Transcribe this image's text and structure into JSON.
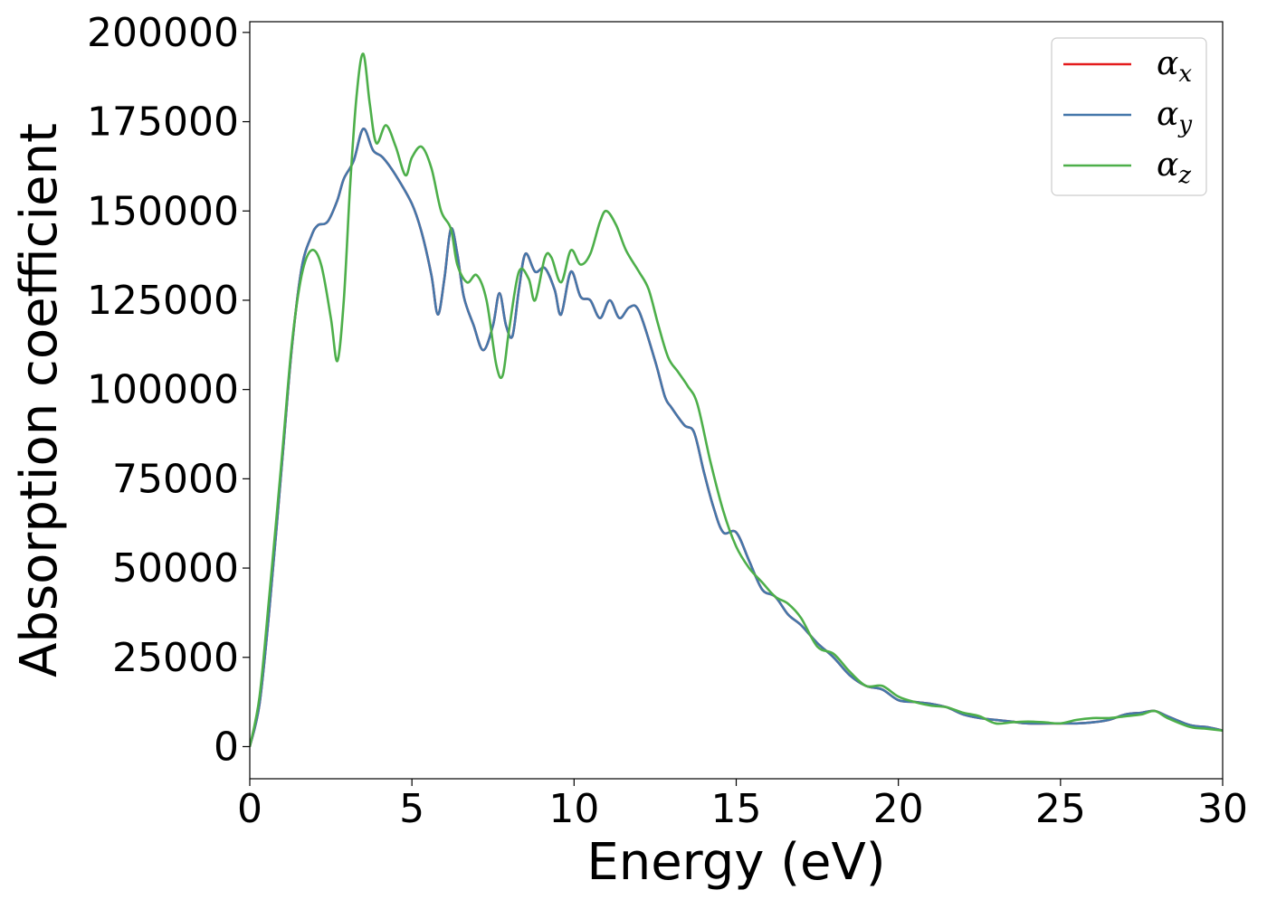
{
  "chart_data": {
    "type": "line",
    "title": "",
    "xlabel": "Energy (eV)",
    "ylabel": "Absorption coefficient",
    "xlim": [
      0,
      30
    ],
    "ylim": [
      -9000,
      203000
    ],
    "xticks": [
      0,
      5,
      10,
      15,
      20,
      25,
      30
    ],
    "xtick_labels": [
      "0",
      "5",
      "10",
      "15",
      "20",
      "25",
      "30"
    ],
    "yticks": [
      0,
      25000,
      50000,
      75000,
      100000,
      125000,
      150000,
      175000,
      200000
    ],
    "ytick_labels": [
      "0",
      "25000",
      "50000",
      "75000",
      "100000",
      "125000",
      "150000",
      "175000",
      "200000"
    ],
    "grid": false,
    "legend_position": "top-right",
    "series": [
      {
        "name": "α",
        "subscript": "x",
        "color": "#e41a1c",
        "points": [
          [
            0,
            0
          ],
          [
            0.3,
            12000
          ],
          [
            0.6,
            38000
          ],
          [
            1.0,
            80000
          ],
          [
            1.3,
            112000
          ],
          [
            1.6,
            134000
          ],
          [
            1.9,
            143000
          ],
          [
            2.1,
            146000
          ],
          [
            2.4,
            147000
          ],
          [
            2.7,
            153000
          ],
          [
            2.9,
            159000
          ],
          [
            3.2,
            164000
          ],
          [
            3.5,
            173000
          ],
          [
            3.8,
            167000
          ],
          [
            4.1,
            165000
          ],
          [
            4.5,
            160000
          ],
          [
            5.0,
            152000
          ],
          [
            5.3,
            144000
          ],
          [
            5.6,
            132000
          ],
          [
            5.8,
            121000
          ],
          [
            6.0,
            131000
          ],
          [
            6.2,
            145000
          ],
          [
            6.4,
            138000
          ],
          [
            6.6,
            126000
          ],
          [
            6.9,
            118000
          ],
          [
            7.2,
            111000
          ],
          [
            7.5,
            118000
          ],
          [
            7.7,
            127000
          ],
          [
            7.9,
            118000
          ],
          [
            8.1,
            115000
          ],
          [
            8.3,
            128000
          ],
          [
            8.5,
            138000
          ],
          [
            8.8,
            133000
          ],
          [
            9.1,
            134000
          ],
          [
            9.4,
            128000
          ],
          [
            9.6,
            121000
          ],
          [
            9.9,
            133000
          ],
          [
            10.2,
            126000
          ],
          [
            10.5,
            125000
          ],
          [
            10.8,
            120000
          ],
          [
            11.1,
            125000
          ],
          [
            11.4,
            120000
          ],
          [
            11.7,
            123000
          ],
          [
            12.0,
            122000
          ],
          [
            12.5,
            108000
          ],
          [
            12.8,
            98000
          ],
          [
            13.0,
            95000
          ],
          [
            13.4,
            90000
          ],
          [
            13.7,
            88000
          ],
          [
            14.0,
            77000
          ],
          [
            14.3,
            67000
          ],
          [
            14.6,
            60000
          ],
          [
            15.0,
            60000
          ],
          [
            15.4,
            52000
          ],
          [
            15.8,
            44000
          ],
          [
            16.2,
            42000
          ],
          [
            16.6,
            37000
          ],
          [
            17.0,
            34000
          ],
          [
            17.5,
            29000
          ],
          [
            18.0,
            25000
          ],
          [
            18.5,
            20000
          ],
          [
            19.0,
            17000
          ],
          [
            19.5,
            16000
          ],
          [
            20.0,
            13000
          ],
          [
            20.5,
            12500
          ],
          [
            21.0,
            12000
          ],
          [
            21.5,
            11000
          ],
          [
            22.0,
            9000
          ],
          [
            22.5,
            8000
          ],
          [
            23.0,
            7500
          ],
          [
            23.5,
            7000
          ],
          [
            24.0,
            6500
          ],
          [
            25.0,
            6500
          ],
          [
            25.5,
            6500
          ],
          [
            26.0,
            6800
          ],
          [
            26.5,
            7500
          ],
          [
            27.0,
            9000
          ],
          [
            27.5,
            9500
          ],
          [
            27.9,
            10000
          ],
          [
            28.3,
            8500
          ],
          [
            29.0,
            6000
          ],
          [
            29.5,
            5500
          ],
          [
            30.0,
            4500
          ]
        ]
      },
      {
        "name": "α",
        "subscript": "y",
        "color": "#4477aa",
        "points": [
          [
            0,
            0
          ],
          [
            0.3,
            12000
          ],
          [
            0.6,
            38000
          ],
          [
            1.0,
            80000
          ],
          [
            1.3,
            112000
          ],
          [
            1.6,
            134000
          ],
          [
            1.9,
            143000
          ],
          [
            2.1,
            146000
          ],
          [
            2.4,
            147000
          ],
          [
            2.7,
            153000
          ],
          [
            2.9,
            159000
          ],
          [
            3.2,
            164000
          ],
          [
            3.5,
            173000
          ],
          [
            3.8,
            167000
          ],
          [
            4.1,
            165000
          ],
          [
            4.5,
            160000
          ],
          [
            5.0,
            152000
          ],
          [
            5.3,
            144000
          ],
          [
            5.6,
            132000
          ],
          [
            5.8,
            121000
          ],
          [
            6.0,
            131000
          ],
          [
            6.2,
            145000
          ],
          [
            6.4,
            138000
          ],
          [
            6.6,
            126000
          ],
          [
            6.9,
            118000
          ],
          [
            7.2,
            111000
          ],
          [
            7.5,
            118000
          ],
          [
            7.7,
            127000
          ],
          [
            7.9,
            118000
          ],
          [
            8.1,
            115000
          ],
          [
            8.3,
            128000
          ],
          [
            8.5,
            138000
          ],
          [
            8.8,
            133000
          ],
          [
            9.1,
            134000
          ],
          [
            9.4,
            128000
          ],
          [
            9.6,
            121000
          ],
          [
            9.9,
            133000
          ],
          [
            10.2,
            126000
          ],
          [
            10.5,
            125000
          ],
          [
            10.8,
            120000
          ],
          [
            11.1,
            125000
          ],
          [
            11.4,
            120000
          ],
          [
            11.7,
            123000
          ],
          [
            12.0,
            122000
          ],
          [
            12.5,
            108000
          ],
          [
            12.8,
            98000
          ],
          [
            13.0,
            95000
          ],
          [
            13.4,
            90000
          ],
          [
            13.7,
            88000
          ],
          [
            14.0,
            77000
          ],
          [
            14.3,
            67000
          ],
          [
            14.6,
            60000
          ],
          [
            15.0,
            60000
          ],
          [
            15.4,
            52000
          ],
          [
            15.8,
            44000
          ],
          [
            16.2,
            42000
          ],
          [
            16.6,
            37000
          ],
          [
            17.0,
            34000
          ],
          [
            17.5,
            29000
          ],
          [
            18.0,
            25000
          ],
          [
            18.5,
            20000
          ],
          [
            19.0,
            17000
          ],
          [
            19.5,
            16000
          ],
          [
            20.0,
            13000
          ],
          [
            20.5,
            12500
          ],
          [
            21.0,
            12000
          ],
          [
            21.5,
            11000
          ],
          [
            22.0,
            9000
          ],
          [
            22.5,
            8000
          ],
          [
            23.0,
            7500
          ],
          [
            23.5,
            7000
          ],
          [
            24.0,
            6500
          ],
          [
            25.0,
            6500
          ],
          [
            25.5,
            6500
          ],
          [
            26.0,
            6800
          ],
          [
            26.5,
            7500
          ],
          [
            27.0,
            9000
          ],
          [
            27.5,
            9500
          ],
          [
            27.9,
            10000
          ],
          [
            28.3,
            8500
          ],
          [
            29.0,
            6000
          ],
          [
            29.5,
            5500
          ],
          [
            30.0,
            4500
          ]
        ]
      },
      {
        "name": "α",
        "subscript": "z",
        "color": "#4daf4a",
        "points": [
          [
            0,
            0
          ],
          [
            0.3,
            14000
          ],
          [
            0.6,
            42000
          ],
          [
            1.0,
            82000
          ],
          [
            1.3,
            113000
          ],
          [
            1.6,
            132000
          ],
          [
            1.9,
            139000
          ],
          [
            2.2,
            135000
          ],
          [
            2.5,
            120000
          ],
          [
            2.7,
            108000
          ],
          [
            2.9,
            125000
          ],
          [
            3.1,
            158000
          ],
          [
            3.3,
            183000
          ],
          [
            3.5,
            194000
          ],
          [
            3.7,
            180000
          ],
          [
            3.9,
            169000
          ],
          [
            4.2,
            174000
          ],
          [
            4.5,
            168000
          ],
          [
            4.8,
            160000
          ],
          [
            5.0,
            165000
          ],
          [
            5.3,
            168000
          ],
          [
            5.6,
            162000
          ],
          [
            5.9,
            150000
          ],
          [
            6.2,
            145000
          ],
          [
            6.4,
            135000
          ],
          [
            6.7,
            130000
          ],
          [
            7.0,
            132000
          ],
          [
            7.3,
            125000
          ],
          [
            7.6,
            107000
          ],
          [
            7.8,
            104000
          ],
          [
            8.0,
            117000
          ],
          [
            8.3,
            133000
          ],
          [
            8.6,
            131000
          ],
          [
            8.8,
            125000
          ],
          [
            9.1,
            137000
          ],
          [
            9.3,
            137000
          ],
          [
            9.6,
            130000
          ],
          [
            9.9,
            139000
          ],
          [
            10.2,
            135000
          ],
          [
            10.5,
            138000
          ],
          [
            10.8,
            147000
          ],
          [
            11.0,
            150000
          ],
          [
            11.3,
            146000
          ],
          [
            11.6,
            139000
          ],
          [
            12.0,
            133000
          ],
          [
            12.3,
            128000
          ],
          [
            12.6,
            118000
          ],
          [
            12.9,
            109000
          ],
          [
            13.2,
            105000
          ],
          [
            13.5,
            101000
          ],
          [
            13.8,
            96000
          ],
          [
            14.2,
            80000
          ],
          [
            14.6,
            66000
          ],
          [
            15.0,
            56000
          ],
          [
            15.4,
            50000
          ],
          [
            15.8,
            46000
          ],
          [
            16.2,
            42000
          ],
          [
            16.6,
            40000
          ],
          [
            17.0,
            36000
          ],
          [
            17.5,
            28000
          ],
          [
            18.0,
            26000
          ],
          [
            18.5,
            21000
          ],
          [
            19.0,
            17000
          ],
          [
            19.5,
            17000
          ],
          [
            20.0,
            14000
          ],
          [
            20.5,
            12500
          ],
          [
            21.0,
            11500
          ],
          [
            21.5,
            11000
          ],
          [
            22.0,
            9500
          ],
          [
            22.5,
            8500
          ],
          [
            23.0,
            6500
          ],
          [
            23.5,
            6800
          ],
          [
            24.0,
            7000
          ],
          [
            24.5,
            6800
          ],
          [
            25.0,
            6500
          ],
          [
            25.5,
            7500
          ],
          [
            26.0,
            8000
          ],
          [
            26.5,
            8000
          ],
          [
            27.0,
            8500
          ],
          [
            27.5,
            9000
          ],
          [
            27.9,
            10000
          ],
          [
            28.3,
            8000
          ],
          [
            29.0,
            5500
          ],
          [
            29.5,
            5000
          ],
          [
            30.0,
            4500
          ]
        ]
      }
    ]
  }
}
